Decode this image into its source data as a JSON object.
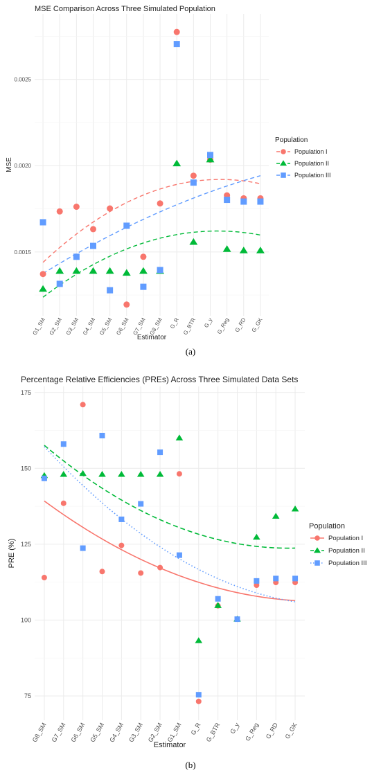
{
  "chart_data": [
    {
      "type": "scatter",
      "title": "MSE Comparison Across Three Simulated Population",
      "xlabel": "Estimator",
      "ylabel": "MSE",
      "categories": [
        "G1_SM",
        "G2_SM",
        "G3_SM",
        "G4_SM",
        "G5_SM",
        "G6_SM",
        "G7_SM",
        "G8_SM",
        "G_R",
        "G_BTR",
        "G_y",
        "G_Reg",
        "G_RD",
        "G_GK"
      ],
      "yticks": [
        0.0015,
        0.002,
        0.0025
      ],
      "ytick_labels": [
        "0.0015",
        "0.0020",
        "0.0025"
      ],
      "ylim": [
        0.00113,
        0.00288
      ],
      "legend_title": "Population",
      "legend_position": "right",
      "grid": true,
      "trend_type": "quadratic",
      "panel_label": "(a)",
      "series": [
        {
          "name": "Population I",
          "color": "#F8766D",
          "shape": "circle",
          "values": [
            0.001372,
            0.001735,
            0.001762,
            0.001632,
            0.001752,
            0.001195,
            0.001472,
            0.001781,
            0.002775,
            0.001942,
            0.002035,
            0.001828,
            0.001811,
            0.001811
          ]
        },
        {
          "name": "Population II",
          "color": "#00BA38",
          "shape": "triangle",
          "values": [
            0.001285,
            0.001389,
            0.001389,
            0.001389,
            0.001389,
            0.001378,
            0.001389,
            0.001389,
            0.002012,
            0.001557,
            0.002035,
            0.001516,
            0.001508,
            0.001508
          ]
        },
        {
          "name": "Population III",
          "color": "#619CFF",
          "shape": "square",
          "values": [
            0.001672,
            0.001315,
            0.001472,
            0.001535,
            0.001278,
            0.001652,
            0.001298,
            0.001395,
            0.002705,
            0.001902,
            0.002062,
            0.001802,
            0.001792,
            0.001792
          ]
        }
      ]
    },
    {
      "type": "scatter",
      "title": "Percentage Relative Efficiencies (PREs) Across Three Simulated Data Sets",
      "xlabel": "Estimator",
      "ylabel": "PRE (%)",
      "categories": [
        "G8_SM",
        "G7_SM",
        "G6_SM",
        "G5_SM",
        "G4_SM",
        "G3_SM",
        "G2_SM",
        "G1_SM",
        "G_R",
        "G_BTR",
        "G_y",
        "G_Reg",
        "G_RD",
        "G_GK"
      ],
      "yticks": [
        75,
        100,
        125,
        150,
        175
      ],
      "ytick_labels": [
        "75",
        "100",
        "125",
        "150",
        "175"
      ],
      "ylim": [
        67,
        177
      ],
      "legend_title": "Population",
      "legend_position": "right",
      "grid": true,
      "trend_type": "quadratic",
      "panel_label": "(b)",
      "series": [
        {
          "name": "Population I",
          "color": "#F8766D",
          "shape": "circle",
          "linestyle": "solid",
          "values": [
            114,
            138.5,
            171,
            116,
            124.6,
            115.5,
            117.3,
            148.2,
            73.2,
            104.7,
            100.3,
            111.5,
            112.4,
            112.4
          ]
        },
        {
          "name": "Population II",
          "color": "#00BA38",
          "shape": "triangle",
          "linestyle": "dashed",
          "values": [
            147.6,
            148,
            148.3,
            148,
            148,
            148,
            148,
            160,
            93.2,
            104.8,
            100.3,
            127.3,
            134.2,
            136.6
          ]
        },
        {
          "name": "Population III",
          "color": "#619CFF",
          "shape": "square",
          "linestyle": "dotted",
          "values": [
            146.7,
            158,
            123.7,
            160.8,
            133.2,
            138.3,
            155.3,
            121.4,
            75.4,
            107,
            100.3,
            112.9,
            113.7,
            113.7
          ]
        }
      ]
    }
  ]
}
